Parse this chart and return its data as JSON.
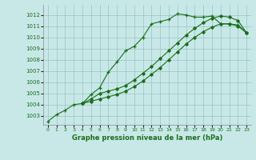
{
  "title": "Graphe pression niveau de la mer (hPa)",
  "bg_color": "#c8e8e8",
  "grid_color": "#a0c8c8",
  "line_color": "#1a6e1a",
  "xlim": [
    -0.5,
    23.5
  ],
  "ylim": [
    1002.2,
    1012.9
  ],
  "yticks": [
    1003,
    1004,
    1005,
    1006,
    1007,
    1008,
    1009,
    1010,
    1011,
    1012
  ],
  "xticks": [
    0,
    1,
    2,
    3,
    4,
    5,
    6,
    7,
    8,
    9,
    10,
    11,
    12,
    13,
    14,
    15,
    16,
    17,
    18,
    19,
    20,
    21,
    22,
    23
  ],
  "series1_x": [
    0,
    1,
    2,
    3,
    4,
    5,
    6,
    7,
    8,
    9,
    10,
    11,
    12,
    13,
    14,
    15,
    16,
    17,
    18,
    19,
    20,
    21,
    22,
    23
  ],
  "series1_y": [
    1002.5,
    1003.1,
    1003.5,
    1004.0,
    1004.1,
    1004.9,
    1005.5,
    1006.9,
    1007.8,
    1008.8,
    1009.2,
    1010.0,
    1011.2,
    1011.4,
    1011.6,
    1012.1,
    1012.0,
    1011.8,
    1011.8,
    1011.9,
    1011.2,
    1011.2,
    1011.1,
    1010.4
  ],
  "series2_x": [
    4,
    5,
    6,
    7,
    8,
    9,
    10,
    11,
    12,
    13,
    14,
    15,
    16,
    17,
    18,
    19,
    20,
    21,
    22,
    23
  ],
  "series2_y": [
    1004.1,
    1004.5,
    1005.0,
    1005.2,
    1005.4,
    1005.7,
    1006.2,
    1006.8,
    1007.4,
    1008.1,
    1008.8,
    1009.5,
    1010.2,
    1010.8,
    1011.3,
    1011.7,
    1011.9,
    1011.8,
    1011.5,
    1010.4
  ],
  "series3_x": [
    4,
    5,
    6,
    7,
    8,
    9,
    10,
    11,
    12,
    13,
    14,
    15,
    16,
    17,
    18,
    19,
    20,
    21,
    22,
    23
  ],
  "series3_y": [
    1004.1,
    1004.3,
    1004.5,
    1004.7,
    1004.9,
    1005.2,
    1005.6,
    1006.1,
    1006.7,
    1007.3,
    1008.0,
    1008.7,
    1009.4,
    1010.0,
    1010.5,
    1010.9,
    1011.2,
    1011.2,
    1011.0,
    1010.4
  ]
}
